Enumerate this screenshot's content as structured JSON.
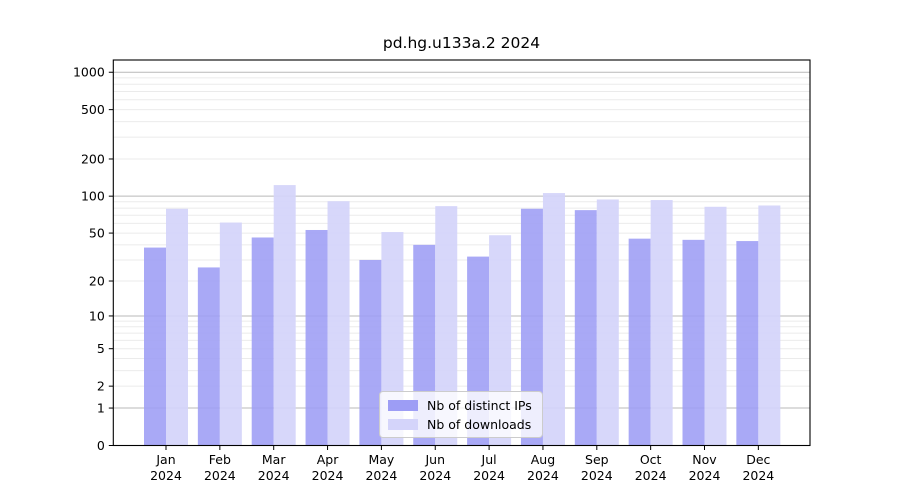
{
  "chart_data": {
    "type": "bar",
    "title": "pd.hg.u133a.2 2024",
    "year": "2024",
    "categories": [
      "Jan",
      "Feb",
      "Mar",
      "Apr",
      "May",
      "Jun",
      "Jul",
      "Aug",
      "Sep",
      "Oct",
      "Nov",
      "Dec"
    ],
    "series": [
      {
        "name": "Nb of distinct IPs",
        "color": "#9d9df5",
        "values": [
          38,
          26,
          46,
          53,
          30,
          40,
          32,
          79,
          77,
          45,
          44,
          43
        ]
      },
      {
        "name": "Nb of downloads",
        "color": "#d4d4fa",
        "values": [
          79,
          61,
          123,
          91,
          51,
          83,
          48,
          106,
          94,
          93,
          82,
          84
        ]
      }
    ],
    "yscale": "log1p",
    "yticks": [
      0,
      1,
      2,
      5,
      10,
      20,
      50,
      100,
      200,
      500,
      1000
    ],
    "ytick_labels": [
      "0",
      "1",
      "2",
      "5",
      "10",
      "20",
      "50",
      "100",
      "200",
      "500",
      "1000"
    ],
    "ylim": [
      0,
      1200
    ],
    "grid": true,
    "legend_position": "lower-center",
    "colors": {
      "major_grid": "#b9b9b9",
      "minor_grid": "#ebebeb",
      "frame": "#000000",
      "text": "#000000"
    }
  }
}
